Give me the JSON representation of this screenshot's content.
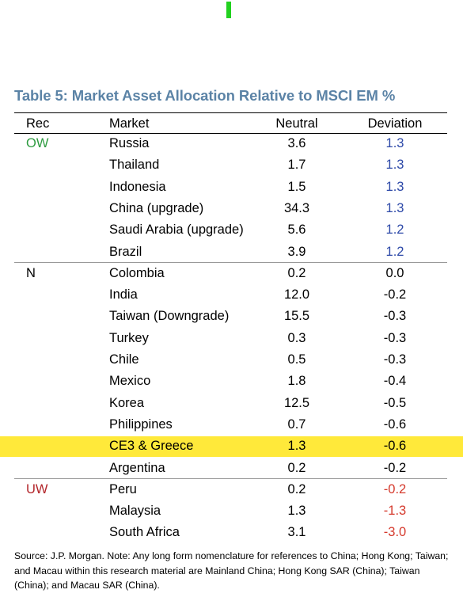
{
  "title": "Table 5: Market Asset Allocation Relative to MSCI EM %",
  "columns": {
    "rec": "Rec",
    "market": "Market",
    "neutral": "Neutral",
    "deviation": "Deviation"
  },
  "colors": {
    "title": "#5b83a6",
    "ow": "#2e9b40",
    "uw": "#b3262b",
    "positive": "#2d49a8",
    "negative": "#d5392c",
    "highlight": "#ffe93a"
  },
  "rows": [
    {
      "rec": "OW",
      "rec_class": "ow",
      "market": "Russia",
      "neutral": "3.6",
      "deviation": "1.3",
      "dev_class": "positive"
    },
    {
      "rec": "",
      "market": "Thailand",
      "neutral": "1.7",
      "deviation": "1.3",
      "dev_class": "positive"
    },
    {
      "rec": "",
      "market": "Indonesia",
      "neutral": "1.5",
      "deviation": "1.3",
      "dev_class": "positive"
    },
    {
      "rec": "",
      "market": "China (upgrade)",
      "neutral": "34.3",
      "deviation": "1.3",
      "dev_class": "positive"
    },
    {
      "rec": "",
      "market": "Saudi Arabia (upgrade)",
      "neutral": "5.6",
      "deviation": "1.2",
      "dev_class": "positive"
    },
    {
      "rec": "",
      "market": "Brazil",
      "neutral": "3.9",
      "deviation": "1.2",
      "dev_class": "positive"
    },
    {
      "rec": "N",
      "rec_class": "n",
      "market": "Colombia",
      "neutral": "0.2",
      "deviation": "0.0",
      "dev_class": "neutral"
    },
    {
      "rec": "",
      "market": "India",
      "neutral": "12.0",
      "deviation": "-0.2",
      "dev_class": "neutral"
    },
    {
      "rec": "",
      "market": "Taiwan (Downgrade)",
      "neutral": "15.5",
      "deviation": "-0.3",
      "dev_class": "neutral"
    },
    {
      "rec": "",
      "market": "Turkey",
      "neutral": "0.3",
      "deviation": "-0.3",
      "dev_class": "neutral"
    },
    {
      "rec": "",
      "market": "Chile",
      "neutral": "0.5",
      "deviation": "-0.3",
      "dev_class": "neutral"
    },
    {
      "rec": "",
      "market": "Mexico",
      "neutral": "1.8",
      "deviation": "-0.4",
      "dev_class": "neutral"
    },
    {
      "rec": "",
      "market": "Korea",
      "neutral": "12.5",
      "deviation": "-0.5",
      "dev_class": "neutral"
    },
    {
      "rec": "",
      "market": "Philippines",
      "neutral": "0.7",
      "deviation": "-0.6",
      "dev_class": "neutral"
    },
    {
      "rec": "",
      "market": "CE3 & Greece",
      "neutral": "1.3",
      "deviation": "-0.6",
      "dev_class": "neutral",
      "highlight": true
    },
    {
      "rec": "",
      "market": "Argentina",
      "neutral": "0.2",
      "deviation": "-0.2",
      "dev_class": "neutral"
    },
    {
      "rec": "UW",
      "rec_class": "uw",
      "market": "Peru",
      "neutral": "0.2",
      "deviation": "-0.2",
      "dev_class": "negative"
    },
    {
      "rec": "",
      "market": "Malaysia",
      "neutral": "1.3",
      "deviation": "-1.3",
      "dev_class": "negative"
    },
    {
      "rec": "",
      "market": "South Africa",
      "neutral": "3.1",
      "deviation": "-3.0",
      "dev_class": "negative"
    }
  ],
  "footer": "Source: J.P. Morgan. Note: Any long form nomenclature for references to China; Hong Kong; Taiwan; and Macau within this research material are Mainland China; Hong Kong SAR (China); Taiwan (China); and Macau SAR (China)."
}
